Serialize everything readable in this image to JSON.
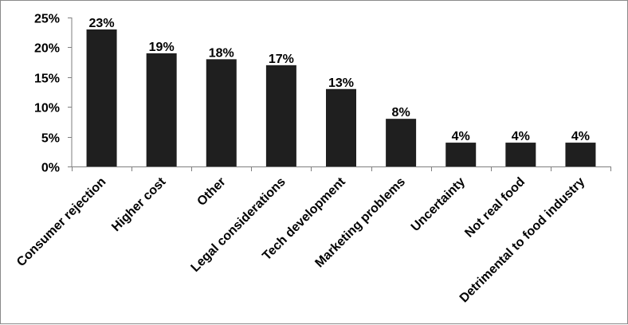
{
  "chart_data": {
    "type": "bar",
    "categories": [
      "Consumer rejection",
      "Higher cost",
      "Other",
      "Legal considerations",
      "Tech development",
      "Marketing problems",
      "Uncertainty",
      "Not real food",
      "Detrimental to food industry"
    ],
    "values": [
      23,
      19,
      18,
      17,
      13,
      8,
      4,
      4,
      4
    ],
    "data_labels": [
      "23%",
      "19%",
      "18%",
      "17%",
      "13%",
      "8%",
      "4%",
      "4%",
      "4%"
    ],
    "y_ticks": [
      "0%",
      "5%",
      "10%",
      "15%",
      "20%",
      "25%"
    ],
    "y_tick_values": [
      0,
      5,
      10,
      15,
      20,
      25
    ],
    "ylim": [
      0,
      25
    ],
    "title": "",
    "xlabel": "",
    "ylabel": "",
    "grid": false,
    "legend": "none",
    "bar_color": "#1f1f1f"
  }
}
